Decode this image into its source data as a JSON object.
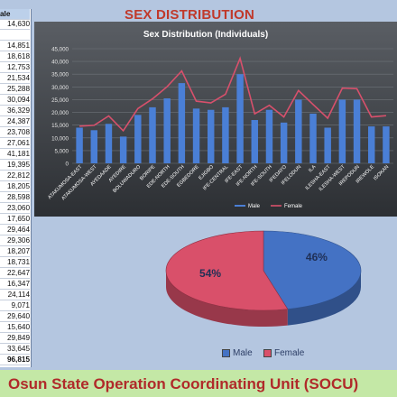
{
  "page_title": "SEX DISTRIBUTION",
  "footer": "Osun State Operation Coordinating Unit (SOCU)",
  "sheet_column": {
    "header": "ale",
    "values": [
      "14,630",
      "",
      "14,851",
      "18,618",
      "12,753",
      "21,534",
      "25,288",
      "30,094",
      "36,329",
      "24,387",
      "23,708",
      "27,061",
      "41,181",
      "19,395",
      "22,812",
      "18,205",
      "28,598",
      "23,060",
      "17,650",
      "29,464",
      "29,306",
      "18,207",
      "18,731",
      "22,647",
      "16,347",
      "24,114",
      "9,071",
      "29,640",
      "15,640",
      "29,849",
      "33,645",
      "96,815"
    ]
  },
  "chart_data": [
    {
      "type": "bar",
      "title": "Sex Distribution (Individuals)",
      "categories": [
        "ATAKUMOSA-EAST",
        "ATAKUMOSA-WEST",
        "AYEDAADE",
        "AYEDIRE",
        "BOLUWADURO",
        "BORIPE",
        "EDE-NORTH",
        "EDE-SOUTH",
        "EGBEDORE",
        "EJIGBO",
        "IFE-CENTRAL",
        "IFE-EAST",
        "IFE-NORTH",
        "IFE-SOUTH",
        "IFEDAYO",
        "IFELODUN",
        "ILA",
        "ILESHA-EAST",
        "ILESHA-WEST",
        "IREPODUN",
        "IREWOLE",
        "ISOKAN"
      ],
      "series": [
        {
          "name": "Male",
          "type": "bar",
          "color": "#4a7fd6",
          "values": [
            14000,
            13000,
            15500,
            10500,
            19000,
            22000,
            25500,
            31500,
            21500,
            21000,
            22000,
            35000,
            17000,
            21000,
            16000,
            25000,
            19500,
            14000,
            25000,
            25000,
            14500,
            14500
          ]
        },
        {
          "name": "Female",
          "type": "line",
          "color": "#d8506c",
          "values": [
            14600,
            14900,
            18600,
            12800,
            21500,
            25300,
            30100,
            36300,
            24400,
            23700,
            27100,
            41200,
            19400,
            22800,
            18200,
            28600,
            23100,
            17700,
            29500,
            29300,
            18200,
            18700
          ]
        }
      ],
      "y_ticks": [
        "0",
        "5,000",
        "10,000",
        "15,000",
        "20,000",
        "25,000",
        "30,000",
        "35,000",
        "40,000",
        "45,000"
      ],
      "ylim": [
        0,
        45000
      ],
      "grid": true,
      "legend": "bottom"
    },
    {
      "type": "pie",
      "categories": [
        "Male",
        "Female"
      ],
      "values": [
        46,
        54
      ],
      "labels": [
        "46%",
        "54%"
      ],
      "colors": [
        "#4472c4",
        "#d9506a"
      ],
      "legend": "bottom"
    }
  ]
}
